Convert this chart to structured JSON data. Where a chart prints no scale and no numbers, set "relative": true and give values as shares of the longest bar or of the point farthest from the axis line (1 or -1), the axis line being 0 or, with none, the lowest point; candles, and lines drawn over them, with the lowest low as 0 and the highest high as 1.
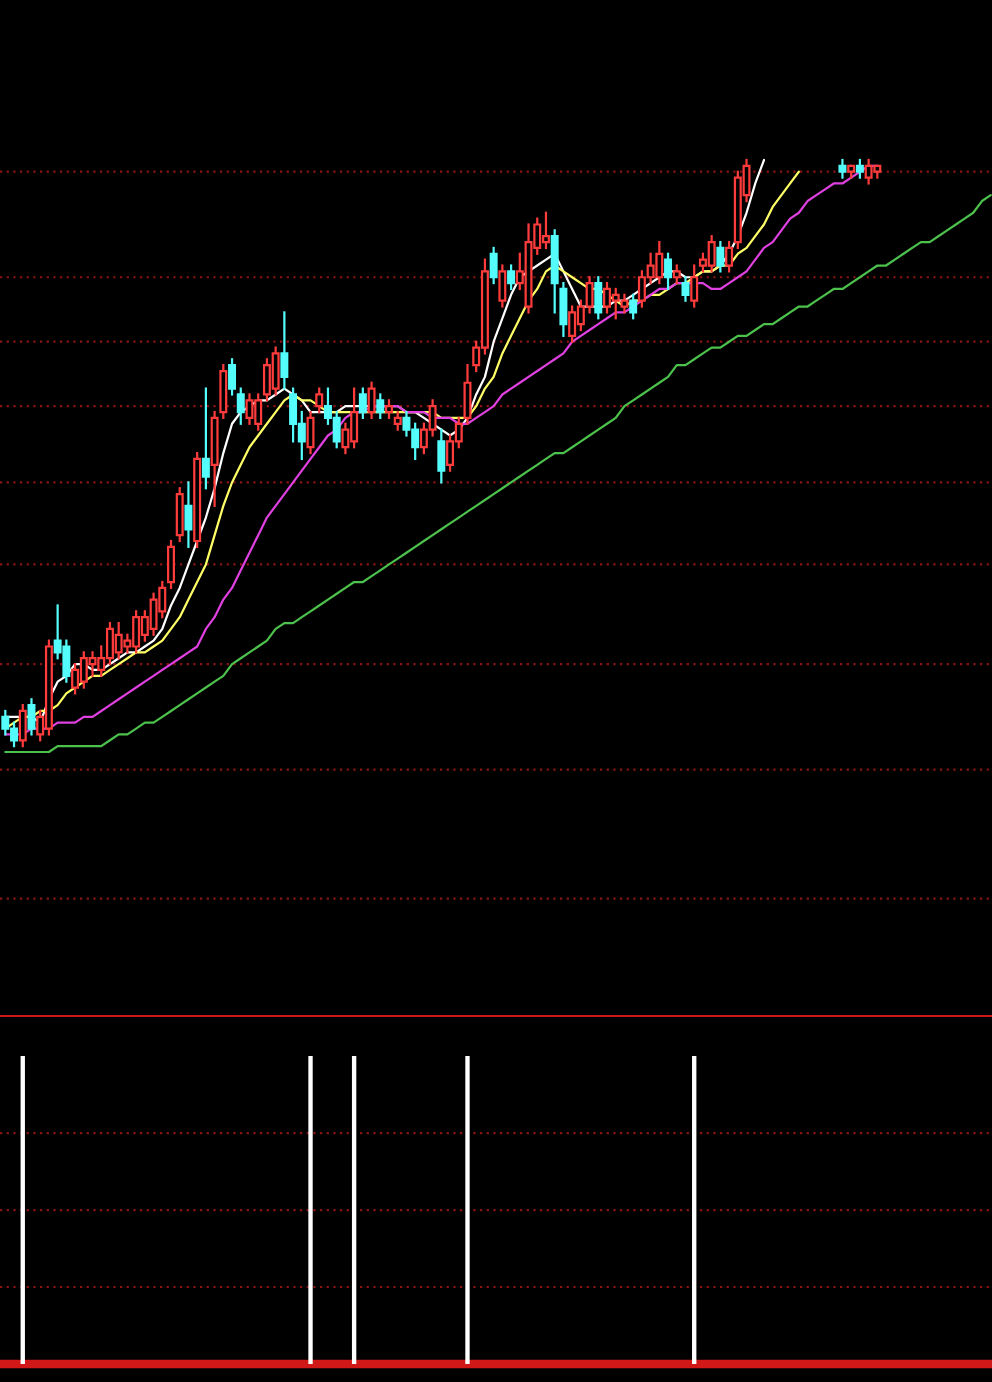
{
  "chart_data": [
    {
      "type": "candlestick",
      "relative": true,
      "tick_labels": false,
      "ref_lines": [
        {
          "axis": "y",
          "value": 0.98,
          "color": "#8a1414",
          "line_style": "dotted"
        },
        {
          "axis": "y",
          "value": 0.8,
          "color": "#8a1414",
          "line_style": "dotted"
        },
        {
          "axis": "y",
          "value": 0.69,
          "color": "#8a1414",
          "line_style": "dotted"
        },
        {
          "axis": "y",
          "value": 0.58,
          "color": "#8a1414",
          "line_style": "dotted"
        },
        {
          "axis": "y",
          "value": 0.45,
          "color": "#8a1414",
          "line_style": "dotted"
        },
        {
          "axis": "y",
          "value": 0.31,
          "color": "#8a1414",
          "line_style": "dotted"
        },
        {
          "axis": "y",
          "value": 0.14,
          "color": "#8a1414",
          "line_style": "dotted"
        },
        {
          "axis": "y",
          "value": -0.04,
          "color": "#8a1414",
          "line_style": "dotted"
        },
        {
          "axis": "y",
          "value": -0.26,
          "color": "#8a1414",
          "line_style": "dotted"
        }
      ],
      "categories": [
        null,
        null,
        null,
        null,
        null,
        null,
        null,
        null,
        null,
        null,
        null,
        null,
        null,
        null,
        null,
        null,
        null,
        null,
        null,
        null,
        null,
        null,
        null,
        null,
        null,
        null,
        null,
        null,
        null,
        null,
        null,
        null,
        null,
        null,
        null,
        null,
        null,
        null,
        null,
        null,
        null,
        null,
        null,
        null,
        null,
        null,
        null,
        null,
        null,
        null,
        null,
        null,
        null,
        null,
        null,
        null,
        null,
        null,
        null,
        null,
        null,
        null,
        null,
        null,
        null,
        null,
        null,
        null,
        null,
        null,
        null,
        null,
        null,
        null,
        null,
        null,
        null,
        null,
        null,
        null,
        null,
        null,
        null,
        null,
        null,
        null,
        null,
        null,
        null,
        null,
        null,
        null,
        null,
        null,
        null,
        null,
        null,
        null,
        null,
        null,
        null,
        null,
        null,
        null,
        null,
        null,
        null,
        null,
        null,
        null,
        null,
        null,
        null,
        null
      ],
      "ohlc": [
        [
          0.05,
          0.06,
          0.02,
          0.03
        ],
        [
          0.03,
          0.04,
          0,
          0.01
        ],
        [
          0.01,
          0.07,
          0,
          0.06
        ],
        [
          0.07,
          0.08,
          0.02,
          0.03
        ],
        [
          0.02,
          0.06,
          0.01,
          0.05
        ],
        [
          0.03,
          0.18,
          0.02,
          0.17
        ],
        [
          0.18,
          0.24,
          0.15,
          0.16
        ],
        [
          0.17,
          0.18,
          0.11,
          0.12
        ],
        [
          0.1,
          0.14,
          0.09,
          0.13
        ],
        [
          0.11,
          0.16,
          0.1,
          0.15
        ],
        [
          0.14,
          0.16,
          0.12,
          0.15
        ],
        [
          0.13,
          0.17,
          0.12,
          0.15
        ],
        [
          0.15,
          0.21,
          0.14,
          0.2
        ],
        [
          0.16,
          0.21,
          0.15,
          0.19
        ],
        [
          0.17,
          0.19,
          0.16,
          0.18
        ],
        [
          0.17,
          0.23,
          0.16,
          0.22
        ],
        [
          0.19,
          0.23,
          0.18,
          0.22
        ],
        [
          0.2,
          0.26,
          0.19,
          0.25
        ],
        [
          0.23,
          0.28,
          0.22,
          0.27
        ],
        [
          0.28,
          0.35,
          0.27,
          0.34
        ],
        [
          0.36,
          0.44,
          0.35,
          0.43
        ],
        [
          0.41,
          0.45,
          0.34,
          0.37
        ],
        [
          0.35,
          0.5,
          0.34,
          0.49
        ],
        [
          0.49,
          0.61,
          0.44,
          0.46
        ],
        [
          0.48,
          0.57,
          0.41,
          0.56
        ],
        [
          0.57,
          0.65,
          0.56,
          0.64
        ],
        [
          0.65,
          0.66,
          0.6,
          0.61
        ],
        [
          0.6,
          0.61,
          0.55,
          0.57
        ],
        [
          0.56,
          0.6,
          0.55,
          0.59
        ],
        [
          0.55,
          0.6,
          0.54,
          0.59
        ],
        [
          0.6,
          0.66,
          0.59,
          0.65
        ],
        [
          0.61,
          0.68,
          0.6,
          0.67
        ],
        [
          0.67,
          0.74,
          0.61,
          0.63
        ],
        [
          0.6,
          0.61,
          0.52,
          0.55
        ],
        [
          0.55,
          0.57,
          0.49,
          0.52
        ],
        [
          0.51,
          0.57,
          0.5,
          0.56
        ],
        [
          0.58,
          0.61,
          0.57,
          0.6
        ],
        [
          0.58,
          0.61,
          0.55,
          0.56
        ],
        [
          0.56,
          0.57,
          0.51,
          0.52
        ],
        [
          0.51,
          0.55,
          0.5,
          0.54
        ],
        [
          0.52,
          0.61,
          0.51,
          0.57
        ],
        [
          0.6,
          0.61,
          0.56,
          0.57
        ],
        [
          0.57,
          0.62,
          0.56,
          0.61
        ],
        [
          0.59,
          0.6,
          0.56,
          0.57
        ],
        [
          0.57,
          0.59,
          0.56,
          0.58
        ],
        [
          0.55,
          0.57,
          0.54,
          0.56
        ],
        [
          0.56,
          0.57,
          0.53,
          0.54
        ],
        [
          0.54,
          0.55,
          0.49,
          0.51
        ],
        [
          0.51,
          0.55,
          0.5,
          0.54
        ],
        [
          0.54,
          0.59,
          0.53,
          0.58
        ],
        [
          0.52,
          0.54,
          0.45,
          0.47
        ],
        [
          0.48,
          0.53,
          0.47,
          0.52
        ],
        [
          0.52,
          0.56,
          0.51,
          0.55
        ],
        [
          0.56,
          0.65,
          0.55,
          0.62
        ],
        [
          0.65,
          0.69,
          0.64,
          0.68
        ],
        [
          0.68,
          0.83,
          0.67,
          0.81
        ],
        [
          0.84,
          0.85,
          0.79,
          0.8
        ],
        [
          0.76,
          0.82,
          0.75,
          0.81
        ],
        [
          0.81,
          0.82,
          0.78,
          0.79
        ],
        [
          0.79,
          0.84,
          0.78,
          0.81
        ],
        [
          0.75,
          0.89,
          0.74,
          0.86
        ],
        [
          0.85,
          0.9,
          0.84,
          0.89
        ],
        [
          0.86,
          0.91,
          0.85,
          0.87
        ],
        [
          0.87,
          0.88,
          0.74,
          0.79
        ],
        [
          0.78,
          0.79,
          0.7,
          0.72
        ],
        [
          0.7,
          0.75,
          0.69,
          0.74
        ],
        [
          0.72,
          0.76,
          0.71,
          0.75
        ],
        [
          0.75,
          0.8,
          0.74,
          0.79
        ],
        [
          0.79,
          0.8,
          0.73,
          0.74
        ],
        [
          0.75,
          0.79,
          0.74,
          0.78
        ],
        [
          0.76,
          0.78,
          0.73,
          0.77
        ],
        [
          0.75,
          0.77,
          0.74,
          0.76
        ],
        [
          0.76,
          0.77,
          0.73,
          0.74
        ],
        [
          0.76,
          0.81,
          0.75,
          0.8
        ],
        [
          0.8,
          0.84,
          0.79,
          0.82
        ],
        [
          0.8,
          0.86,
          0.79,
          0.84
        ],
        [
          0.83,
          0.84,
          0.78,
          0.8
        ],
        [
          0.8,
          0.82,
          0.79,
          0.81
        ],
        [
          0.79,
          0.8,
          0.76,
          0.77
        ],
        [
          0.76,
          0.82,
          0.75,
          0.8
        ],
        [
          0.82,
          0.84,
          0.81,
          0.83
        ],
        [
          0.82,
          0.87,
          0.81,
          0.86
        ],
        [
          0.85,
          0.86,
          0.81,
          0.82
        ],
        [
          0.82,
          0.86,
          0.81,
          0.85
        ],
        [
          0.86,
          0.98,
          0.85,
          0.97
        ],
        [
          0.94,
          1.0,
          0.93,
          0.99
        ],
        null,
        null,
        null,
        null,
        null,
        null,
        null,
        null,
        null,
        null,
        [
          0.99,
          1.0,
          0.97,
          0.98
        ],
        [
          0.98,
          0.99,
          0.97,
          0.99
        ],
        [
          0.99,
          1.0,
          0.97,
          0.98
        ],
        [
          0.97,
          1.0,
          0.96,
          0.99
        ],
        [
          0.98,
          0.99,
          0.97,
          0.99
        ],
        null,
        null,
        null,
        null,
        null,
        null,
        null,
        null,
        null,
        null,
        null,
        null,
        null
      ],
      "series": [
        {
          "type": "line",
          "color": "#ffffff",
          "values": [
            0.05,
            0.05,
            0.05,
            0.05,
            0.04,
            0.08,
            0.11,
            0.12,
            0.14,
            0.14,
            0.13,
            0.13,
            0.14,
            0.15,
            0.16,
            0.16,
            0.17,
            0.18,
            0.2,
            0.24,
            0.27,
            0.31,
            0.35,
            0.39,
            0.44,
            0.5,
            0.55,
            0.57,
            0.58,
            0.59,
            0.59,
            0.6,
            0.61,
            0.6,
            0.59,
            0.57,
            0.57,
            0.57,
            0.57,
            0.58,
            0.58,
            0.58,
            0.58,
            0.58,
            0.58,
            0.58,
            0.57,
            0.57,
            0.56,
            0.55,
            0.54,
            0.53,
            0.54,
            0.56,
            0.6,
            0.63,
            0.69,
            0.73,
            0.77,
            0.8,
            0.81,
            0.82,
            0.83,
            0.84,
            0.81,
            0.78,
            0.75,
            0.75,
            0.75,
            0.75,
            0.76,
            0.76,
            0.77,
            0.78,
            0.79,
            0.8,
            0.81,
            0.81,
            0.8,
            0.8,
            0.81,
            0.81,
            0.82,
            0.84,
            0.87,
            0.91,
            0.96,
            1.0,
            null,
            null,
            null,
            null,
            null,
            null,
            null,
            null,
            null,
            null,
            null,
            null,
            null,
            null,
            null,
            null,
            null,
            null,
            null,
            null,
            null,
            null,
            null,
            null,
            null,
            null
          ]
        },
        {
          "type": "line",
          "color": "#ffff66",
          "values": [
            0.03,
            0.04,
            0.05,
            0.05,
            0.06,
            0.06,
            0.07,
            0.09,
            0.1,
            0.11,
            0.12,
            0.12,
            0.13,
            0.14,
            0.15,
            0.16,
            0.16,
            0.17,
            0.18,
            0.2,
            0.22,
            0.25,
            0.28,
            0.31,
            0.36,
            0.41,
            0.45,
            0.48,
            0.51,
            0.53,
            0.55,
            0.57,
            0.59,
            0.6,
            0.59,
            0.59,
            0.58,
            0.57,
            0.57,
            0.57,
            0.57,
            0.57,
            0.57,
            0.57,
            0.57,
            0.57,
            0.57,
            0.57,
            0.57,
            0.57,
            0.56,
            0.56,
            0.56,
            0.56,
            0.58,
            0.61,
            0.63,
            0.67,
            0.7,
            0.73,
            0.76,
            0.78,
            0.81,
            0.82,
            0.81,
            0.8,
            0.79,
            0.78,
            0.78,
            0.77,
            0.76,
            0.75,
            0.76,
            0.76,
            0.77,
            0.77,
            0.78,
            0.79,
            0.79,
            0.8,
            0.81,
            0.81,
            0.82,
            0.82,
            0.84,
            0.85,
            0.87,
            0.89,
            0.92,
            0.94,
            0.96,
            0.98,
            null,
            null,
            null,
            null,
            null,
            null,
            null,
            null,
            null,
            null,
            null,
            null,
            null,
            null,
            null,
            null,
            null,
            null,
            null,
            null,
            null,
            null
          ]
        },
        {
          "type": "line",
          "color": "#e040e0",
          "values": [
            0.02,
            0.02,
            0.02,
            0.03,
            0.03,
            0.03,
            0.04,
            0.04,
            0.04,
            0.05,
            0.05,
            0.06,
            0.07,
            0.08,
            0.09,
            0.1,
            0.11,
            0.12,
            0.13,
            0.14,
            0.15,
            0.16,
            0.17,
            0.2,
            0.22,
            0.25,
            0.27,
            0.3,
            0.33,
            0.36,
            0.39,
            0.41,
            0.43,
            0.45,
            0.47,
            0.49,
            0.51,
            0.53,
            0.54,
            0.56,
            0.57,
            0.57,
            0.58,
            0.58,
            0.58,
            0.58,
            0.57,
            0.57,
            0.57,
            0.56,
            0.56,
            0.56,
            0.55,
            0.55,
            0.56,
            0.57,
            0.58,
            0.6,
            0.61,
            0.62,
            0.63,
            0.64,
            0.65,
            0.66,
            0.67,
            0.69,
            0.7,
            0.71,
            0.72,
            0.73,
            0.74,
            0.74,
            0.75,
            0.76,
            0.77,
            0.78,
            0.78,
            0.79,
            0.79,
            0.79,
            0.79,
            0.78,
            0.78,
            0.79,
            0.8,
            0.81,
            0.83,
            0.85,
            0.86,
            0.88,
            0.9,
            0.91,
            0.93,
            0.94,
            0.95,
            0.96,
            0.96,
            0.97,
            0.98,
            0.99,
            0.99,
            null,
            null,
            null,
            null,
            null,
            null,
            null,
            null,
            null,
            null,
            null,
            null,
            null
          ]
        },
        {
          "type": "line",
          "color": "#4cc24c",
          "values": [
            -0.01,
            -0.01,
            -0.01,
            -0.01,
            -0.01,
            -0.01,
            0.0,
            0.0,
            0.0,
            0.0,
            0.0,
            0.0,
            0.01,
            0.02,
            0.02,
            0.03,
            0.04,
            0.04,
            0.05,
            0.06,
            0.07,
            0.08,
            0.09,
            0.1,
            0.11,
            0.12,
            0.14,
            0.15,
            0.16,
            0.17,
            0.18,
            0.2,
            0.21,
            0.21,
            0.22,
            0.23,
            0.24,
            0.25,
            0.26,
            0.27,
            0.28,
            0.28,
            0.29,
            0.3,
            0.31,
            0.32,
            0.33,
            0.34,
            0.35,
            0.36,
            0.37,
            0.38,
            0.39,
            0.4,
            0.41,
            0.42,
            0.43,
            0.44,
            0.45,
            0.46,
            0.47,
            0.48,
            0.49,
            0.5,
            0.5,
            0.51,
            0.52,
            0.53,
            0.54,
            0.55,
            0.56,
            0.58,
            0.59,
            0.6,
            0.61,
            0.62,
            0.63,
            0.65,
            0.65,
            0.66,
            0.67,
            0.68,
            0.68,
            0.69,
            0.7,
            0.7,
            0.71,
            0.72,
            0.72,
            0.73,
            0.74,
            0.75,
            0.75,
            0.76,
            0.77,
            0.78,
            0.78,
            0.79,
            0.8,
            0.81,
            0.82,
            0.82,
            0.83,
            0.84,
            0.85,
            0.86,
            0.86,
            0.87,
            0.88,
            0.89,
            0.9,
            0.91,
            0.93,
            0.94
          ]
        }
      ]
    },
    {
      "type": "bar",
      "relative": true,
      "tick_labels": false,
      "color": "#ffffff",
      "ref_lines": [
        {
          "axis": "y",
          "value": 0.75,
          "color": "#8a1414",
          "line_style": "dotted"
        },
        {
          "axis": "y",
          "value": 0.5,
          "color": "#8a1414",
          "line_style": "dotted"
        },
        {
          "axis": "y",
          "value": 0.25,
          "color": "#8a1414",
          "line_style": "dotted"
        }
      ],
      "categories": [
        null,
        null,
        null,
        null,
        null,
        null,
        null,
        null,
        null,
        null,
        null,
        null,
        null,
        null,
        null,
        null,
        null,
        null,
        null,
        null,
        null,
        null,
        null,
        null,
        null,
        null,
        null,
        null,
        null,
        null,
        null,
        null,
        null,
        null,
        null,
        null,
        null,
        null,
        null,
        null,
        null,
        null,
        null,
        null,
        null,
        null,
        null,
        null,
        null,
        null,
        null,
        null,
        null,
        null,
        null,
        null,
        null,
        null,
        null,
        null,
        null,
        null,
        null,
        null,
        null,
        null,
        null,
        null,
        null,
        null,
        null,
        null,
        null,
        null,
        null,
        null,
        null,
        null,
        null,
        null,
        null,
        null,
        null,
        null,
        null,
        null,
        null,
        null,
        null,
        null,
        null,
        null,
        null,
        null,
        null,
        null,
        null,
        null,
        null,
        null,
        null,
        null,
        null,
        null,
        null,
        null,
        null,
        null,
        null,
        null,
        null,
        null,
        null,
        null
      ],
      "values": [
        0,
        0,
        1,
        0,
        0,
        0,
        0,
        0,
        0,
        0,
        0,
        0,
        0,
        0,
        0,
        0,
        0,
        0,
        0,
        0,
        0,
        0,
        0,
        0,
        0,
        0,
        0,
        0,
        0,
        0,
        0,
        0,
        0,
        0,
        0,
        1,
        0,
        0,
        0,
        0,
        1,
        0,
        0,
        0,
        0,
        0,
        0,
        0,
        0,
        0,
        0,
        0,
        0,
        1,
        0,
        0,
        0,
        0,
        0,
        0,
        0,
        0,
        0,
        0,
        0,
        0,
        0,
        0,
        0,
        0,
        0,
        0,
        0,
        0,
        0,
        0,
        0,
        0,
        0,
        1,
        0,
        0,
        0,
        0,
        0,
        0,
        0,
        0,
        0,
        0,
        0,
        0,
        0,
        0,
        0,
        0,
        0,
        0,
        0,
        0,
        0,
        0,
        0,
        0,
        0,
        0,
        0,
        0,
        0,
        0,
        0,
        0,
        0,
        0
      ]
    }
  ]
}
